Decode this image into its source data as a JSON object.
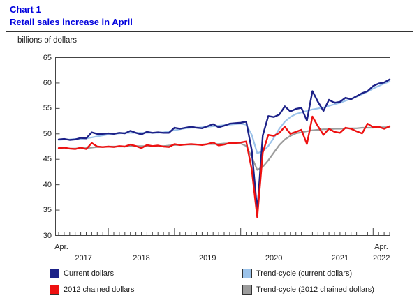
{
  "header": {
    "chart_label": "Chart 1",
    "title": "Retail sales increase in April"
  },
  "unit_label": "billions of dollars",
  "x_axis": {
    "left_month_label": "Apr.",
    "right_month_label": "Apr.",
    "year_labels": [
      "2017",
      "2018",
      "2019",
      "2020",
      "2021",
      "2022"
    ]
  },
  "y_axis": {
    "tick_labels": [
      "30",
      "35",
      "40",
      "45",
      "50",
      "55",
      "60",
      "65"
    ]
  },
  "legend": {
    "items": [
      {
        "label": "Current dollars",
        "color": "#1c2188"
      },
      {
        "label": "2012 chained dollars",
        "color": "#ee1111"
      },
      {
        "label": "Trend-cycle (current dollars)",
        "color": "#9cc3ea"
      },
      {
        "label": "Trend-cycle (2012 chained dollars)",
        "color": "#9c9c9c"
      }
    ]
  },
  "colors": {
    "accent_title": "#0000dd",
    "axis": "#444444"
  },
  "chart_data": {
    "type": "line",
    "title": "Retail sales increase in April",
    "ylabel": "billions of dollars",
    "x_unit": "month",
    "x_start": "2017-04",
    "x_end": "2022-04",
    "months_span": 60,
    "ylim": [
      30,
      65
    ],
    "ytick_step": 5,
    "grid": false,
    "legend_position": "bottom",
    "series": [
      {
        "name": "Trend-cycle (current dollars)",
        "color": "#9cc3ea",
        "width": 2.2,
        "values": [
          48.8,
          48.9,
          48.9,
          49.0,
          49.0,
          49.1,
          49.3,
          49.5,
          49.7,
          49.9,
          50.0,
          50.1,
          50.2,
          50.2,
          50.2,
          50.2,
          50.2,
          50.2,
          50.2,
          50.3,
          50.5,
          50.7,
          50.9,
          51.1,
          51.2,
          51.2,
          51.3,
          51.4,
          51.5,
          51.6,
          51.7,
          51.8,
          51.9,
          52.0,
          51.8,
          49.8,
          46.2,
          46.6,
          47.6,
          49.2,
          51.0,
          52.4,
          53.3,
          53.9,
          54.2,
          54.5,
          54.8,
          55.0,
          55.2,
          55.5,
          55.8,
          56.1,
          56.5,
          56.9,
          57.3,
          57.8,
          58.3,
          58.9,
          59.4,
          59.9,
          60.3
        ]
      },
      {
        "name": "Trend-cycle (2012 chained dollars)",
        "color": "#9c9c9c",
        "width": 2.2,
        "values": [
          47.1,
          47.1,
          47.1,
          47.1,
          47.2,
          47.2,
          47.3,
          47.4,
          47.4,
          47.5,
          47.5,
          47.5,
          47.5,
          47.6,
          47.6,
          47.6,
          47.6,
          47.6,
          47.6,
          47.6,
          47.7,
          47.8,
          47.8,
          47.9,
          47.9,
          47.9,
          47.9,
          48.0,
          48.0,
          48.0,
          48.1,
          48.1,
          48.2,
          48.1,
          47.6,
          45.5,
          42.9,
          43.5,
          44.8,
          46.3,
          47.8,
          48.9,
          49.6,
          50.1,
          50.3,
          50.5,
          50.7,
          50.8,
          50.9,
          50.9,
          51.0,
          51.0,
          51.1,
          51.1,
          51.1,
          51.2,
          51.2,
          51.2,
          51.3,
          51.3,
          51.3
        ]
      },
      {
        "name": "Current dollars",
        "color": "#1c2188",
        "width": 2.4,
        "values": [
          48.9,
          49.0,
          48.8,
          48.9,
          49.2,
          49.1,
          50.3,
          50.0,
          50.0,
          50.1,
          50.0,
          50.2,
          50.1,
          50.6,
          50.2,
          49.9,
          50.4,
          50.2,
          50.3,
          50.2,
          50.2,
          51.2,
          51.0,
          51.2,
          51.4,
          51.2,
          51.1,
          51.5,
          51.9,
          51.3,
          51.6,
          52.0,
          52.1,
          52.2,
          52.4,
          46.8,
          34.8,
          49.7,
          53.5,
          53.3,
          53.8,
          55.4,
          54.4,
          54.9,
          55.1,
          52.6,
          58.4,
          56.3,
          54.5,
          56.7,
          56.1,
          56.3,
          57.1,
          56.8,
          57.4,
          58.0,
          58.4,
          59.4,
          59.9,
          60.1,
          60.7
        ]
      },
      {
        "name": "2012 chained dollars",
        "color": "#ee1111",
        "width": 2.4,
        "values": [
          47.2,
          47.3,
          47.1,
          47.0,
          47.3,
          47.0,
          48.2,
          47.5,
          47.4,
          47.5,
          47.4,
          47.6,
          47.5,
          47.9,
          47.6,
          47.2,
          47.8,
          47.6,
          47.7,
          47.5,
          47.4,
          48.0,
          47.8,
          47.9,
          48.0,
          47.9,
          47.8,
          48.0,
          48.3,
          47.7,
          47.9,
          48.2,
          48.2,
          48.3,
          48.5,
          43.0,
          33.6,
          46.3,
          49.8,
          49.6,
          50.2,
          51.4,
          50.0,
          50.4,
          50.8,
          48.0,
          53.4,
          51.5,
          49.8,
          51.0,
          50.4,
          50.2,
          51.2,
          51.0,
          50.5,
          50.1,
          52.0,
          51.3,
          51.4,
          51.0,
          51.5
        ]
      }
    ]
  }
}
